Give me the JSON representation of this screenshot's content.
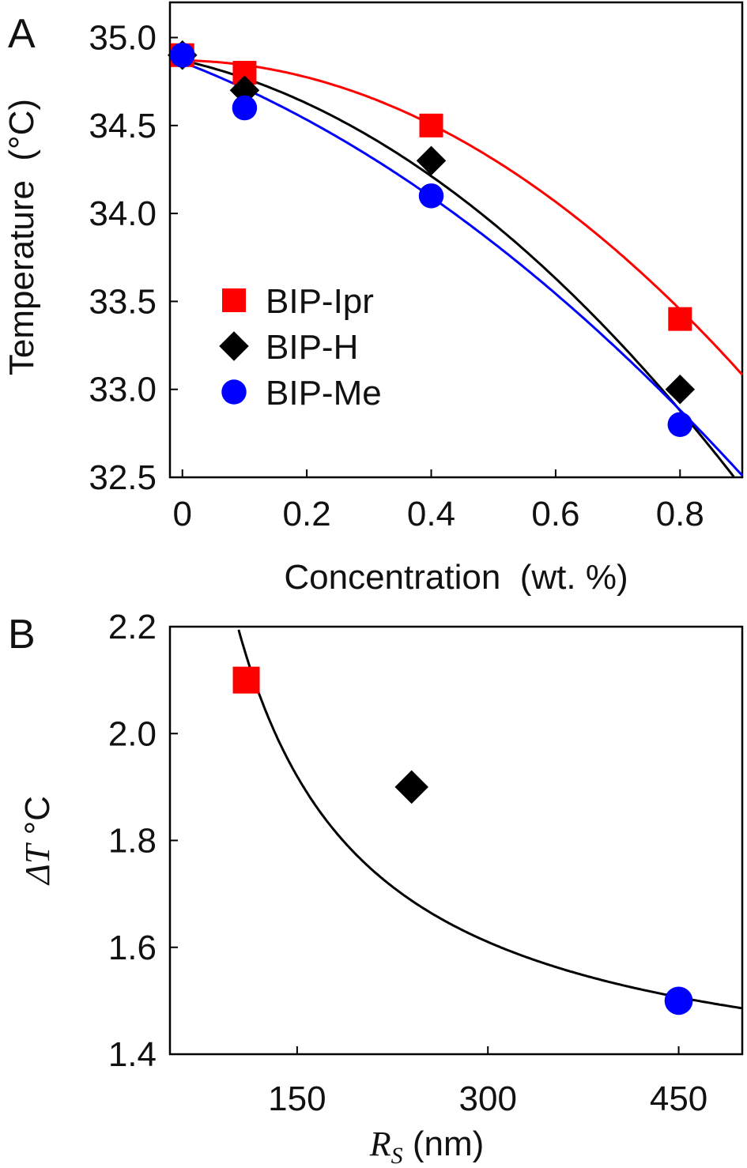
{
  "chart_data": [
    {
      "panel": "A",
      "type": "scatter",
      "xlabel": "Concentration  (wt. %)",
      "ylabel": "Temperature  (°C)",
      "xlim": [
        -0.02,
        0.9
      ],
      "ylim": [
        32.5,
        35.2
      ],
      "xticks": [
        0,
        0.2,
        0.4,
        0.6,
        0.8
      ],
      "xtick_labels": [
        "0",
        "0.2",
        "0.4",
        "0.6",
        "0.8"
      ],
      "yticks": [
        32.5,
        33.0,
        33.5,
        34.0,
        34.5,
        35.0
      ],
      "ytick_labels": [
        "32.5",
        "33.0",
        "33.5",
        "34.0",
        "34.5",
        "35.0"
      ],
      "legend_position": "center-left",
      "series": [
        {
          "name": "BIP-Ipr",
          "marker": "square",
          "color": "#ff0000",
          "x": [
            0,
            0.1,
            0.4,
            0.8
          ],
          "y": [
            34.9,
            34.8,
            34.5,
            33.4
          ],
          "fit": [
            34.87,
            -0.05,
            -2.15
          ]
        },
        {
          "name": "BIP-H",
          "marker": "diamond",
          "color": "#000000",
          "x": [
            0,
            0.1,
            0.4,
            0.8
          ],
          "y": [
            34.9,
            34.7,
            34.3,
            33.0
          ],
          "fit": [
            34.87,
            -0.8,
            -2.11
          ]
        },
        {
          "name": "BIP-Me",
          "marker": "circle",
          "color": "#0000ff",
          "x": [
            0,
            0.1,
            0.4,
            0.8
          ],
          "y": [
            34.9,
            34.6,
            34.1,
            32.8
          ],
          "fit": [
            34.86,
            -1.36,
            -1.39
          ]
        }
      ]
    },
    {
      "panel": "B",
      "type": "scatter",
      "xlabel_symbol": "R",
      "xlabel_sub": "S",
      "xlabel_unit": " (nm)",
      "ylabel_symbol": "ΔT",
      "ylabel_unit": " °C",
      "xlim": [
        50,
        500
      ],
      "ylim": [
        1.4,
        2.2
      ],
      "xticks": [
        150,
        300,
        450
      ],
      "xtick_labels": [
        "150",
        "300",
        "450"
      ],
      "yticks": [
        1.4,
        1.6,
        1.8,
        2.0,
        2.2
      ],
      "ytick_labels": [
        "1.4",
        "1.6",
        "1.8",
        "2.0",
        "2.2"
      ],
      "points": [
        {
          "x": 110,
          "y": 2.1,
          "marker": "square",
          "color": "#ff0000"
        },
        {
          "x": 240,
          "y": 1.9,
          "marker": "diamond",
          "color": "#000000"
        },
        {
          "x": 450,
          "y": 1.5,
          "marker": "circle",
          "color": "#0000ff"
        }
      ],
      "fit_curve": {
        "form": "a + b/x",
        "a": 1.3,
        "b": 93,
        "color": "#000000"
      }
    }
  ],
  "panel_labels": [
    "A",
    "B"
  ]
}
